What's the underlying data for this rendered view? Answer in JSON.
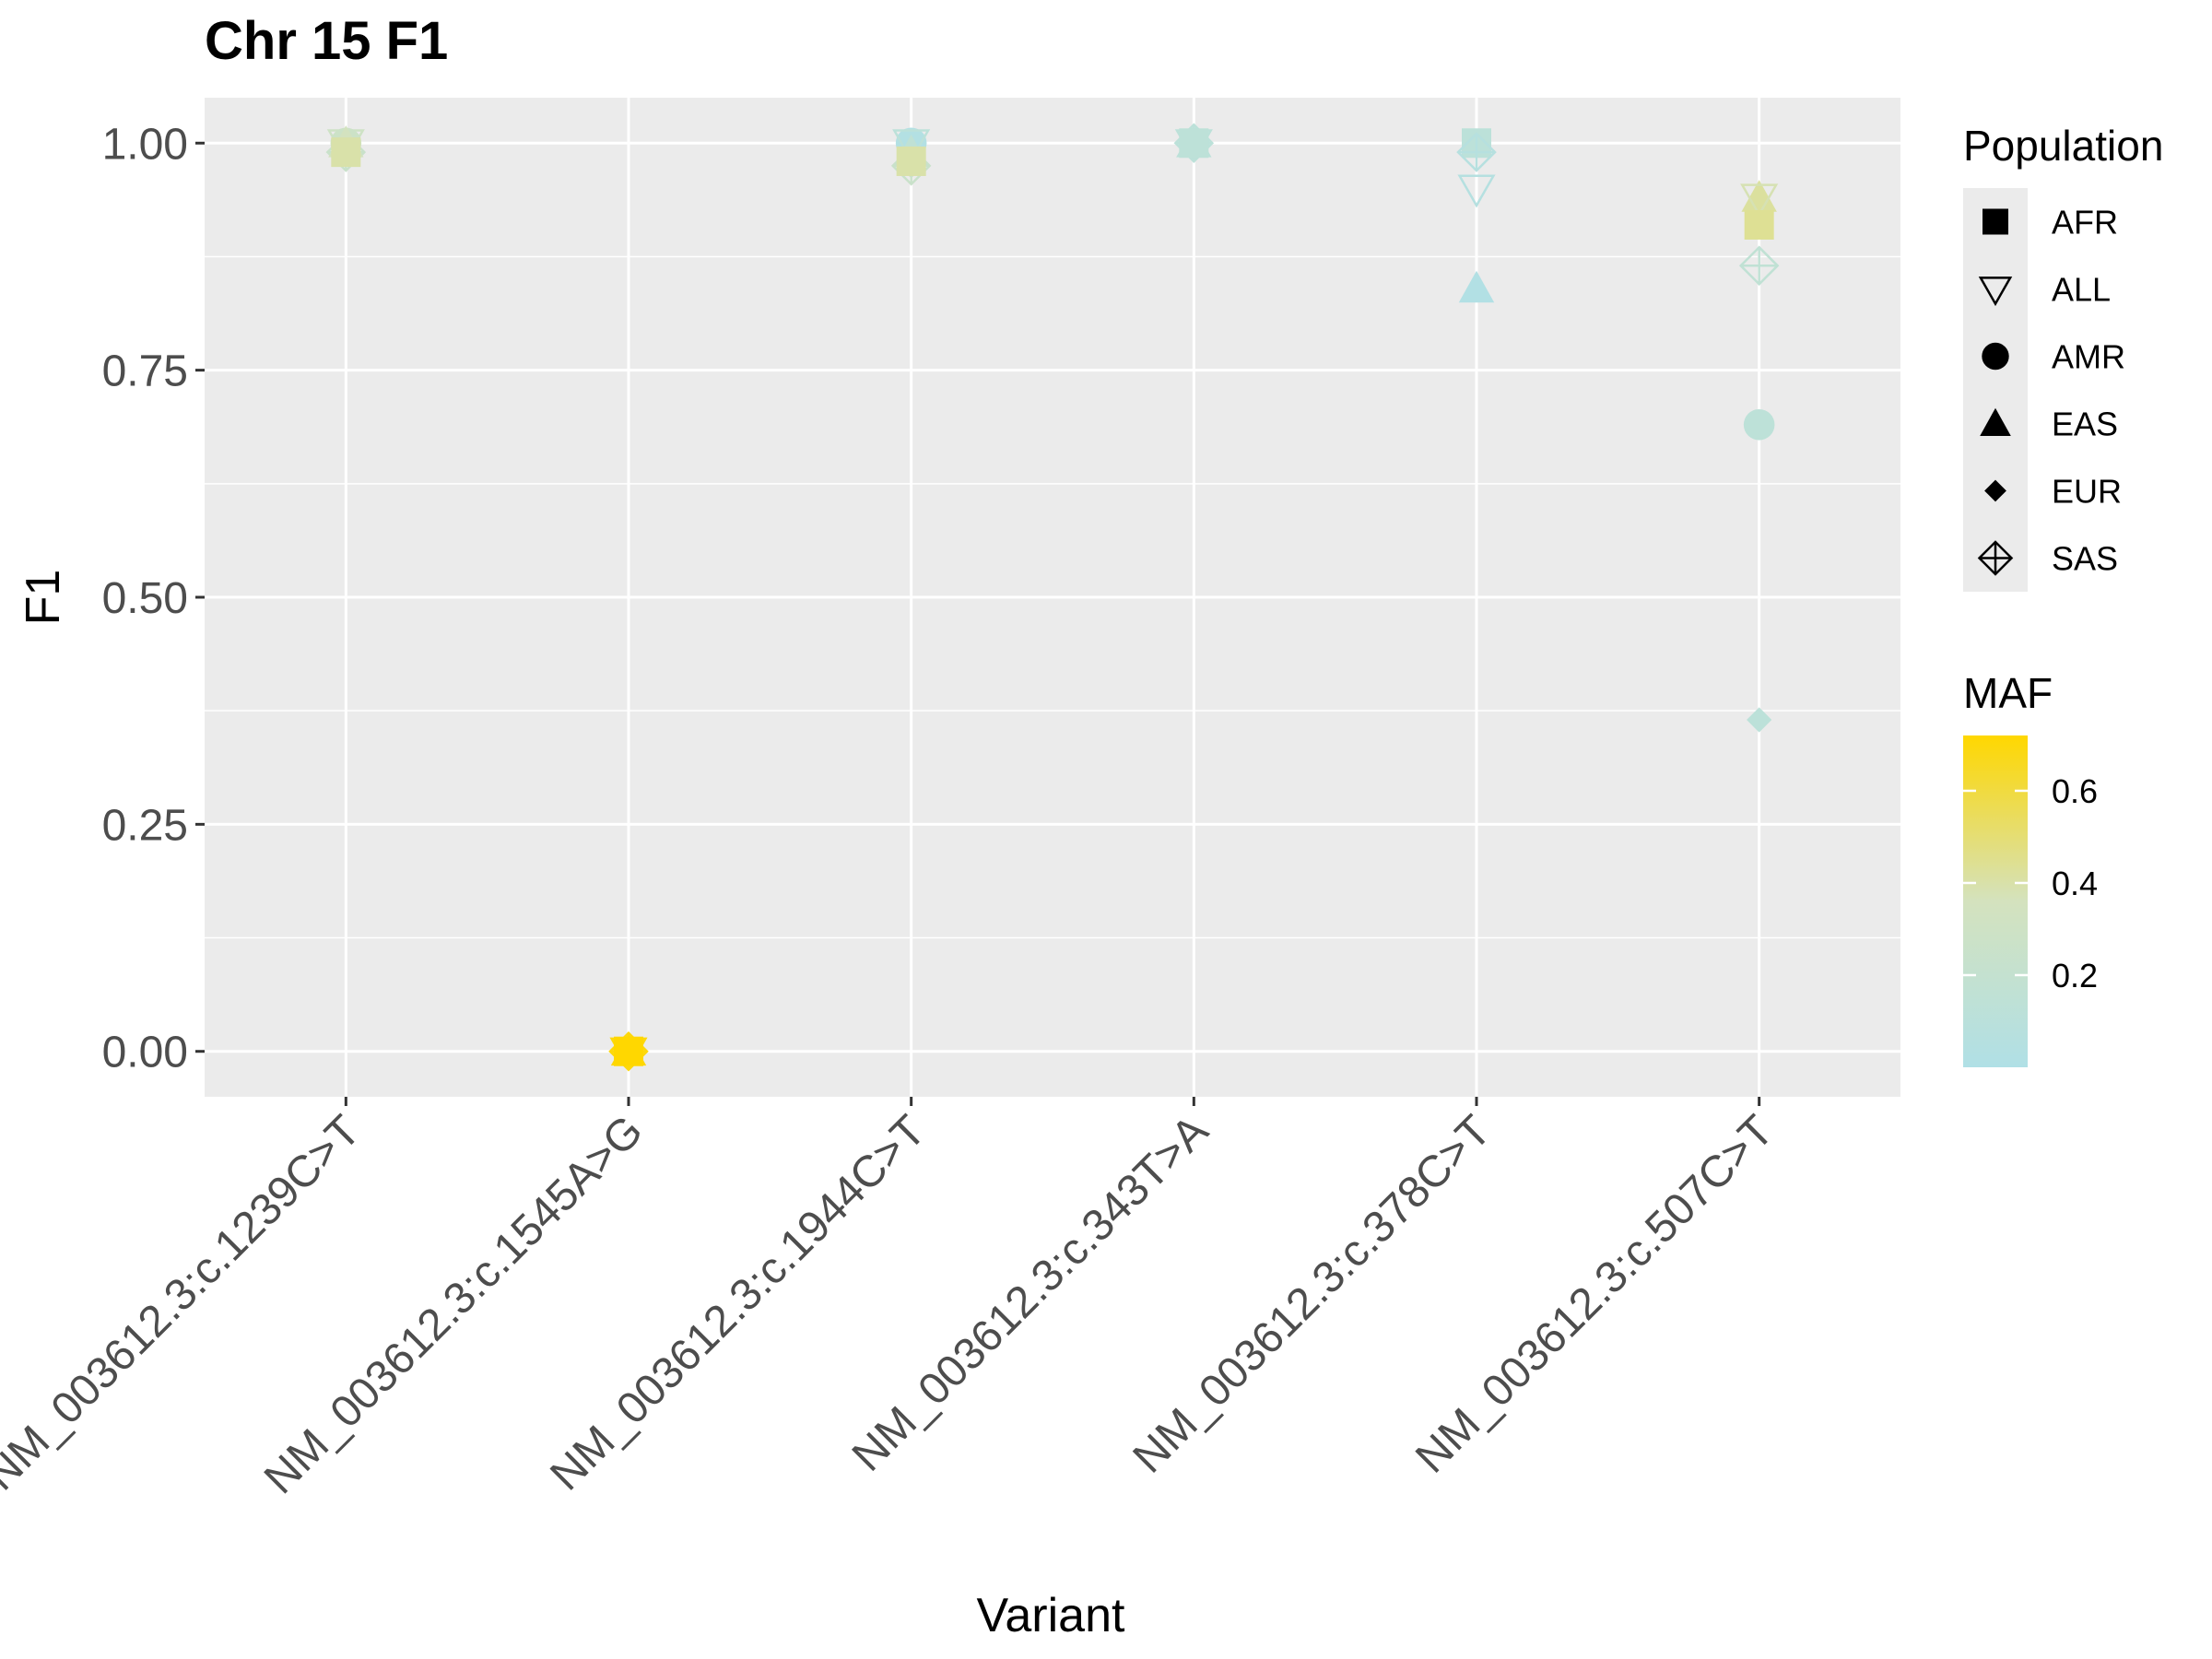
{
  "chart_data": {
    "type": "scatter",
    "title": "Chr 15 F1",
    "xlabel": "Variant",
    "ylabel": "F1",
    "categories": [
      "NM_003612.3:c.1239C>T",
      "NM_003612.3:c.1545A>G",
      "NM_003612.3:c.1944C>T",
      "NM_003612.3:c.343T>A",
      "NM_003612.3:c.378C>T",
      "NM_003612.3:c.507C>T"
    ],
    "ylim": [
      -0.05,
      1.05
    ],
    "yticks": [
      0.0,
      0.25,
      0.5,
      0.75,
      1.0
    ],
    "ytick_labels": [
      "0.00",
      "0.25",
      "0.50",
      "0.75",
      "1.00"
    ],
    "grid": true,
    "legend_shape": {
      "title": "Population",
      "position": "right",
      "entries": [
        {
          "label": "AFR",
          "shape": "filled-square"
        },
        {
          "label": "ALL",
          "shape": "open-triangle-down"
        },
        {
          "label": "AMR",
          "shape": "filled-circle"
        },
        {
          "label": "EAS",
          "shape": "filled-triangle-up"
        },
        {
          "label": "EUR",
          "shape": "filled-diamond"
        },
        {
          "label": "SAS",
          "shape": "open-diamond-plus"
        }
      ]
    },
    "legend_color": {
      "title": "MAF",
      "position": "right",
      "low_color": "#B0E0E6",
      "mid_color": "#D4E2BE",
      "high_color": "#FFD700",
      "range": [
        0.0,
        0.72
      ],
      "ticks": [
        0.2,
        0.4,
        0.6
      ],
      "tick_labels": [
        "0.2",
        "0.4",
        "0.6"
      ]
    },
    "points": [
      {
        "variant": "NM_003612.3:c.1239C>T",
        "population": "ALL",
        "f1": 1.0,
        "maf": 0.3
      },
      {
        "variant": "NM_003612.3:c.1239C>T",
        "population": "EUR",
        "f1": 0.99,
        "maf": 0.22
      },
      {
        "variant": "NM_003612.3:c.1239C>T",
        "population": "SAS",
        "f1": 0.99,
        "maf": 0.25
      },
      {
        "variant": "NM_003612.3:c.1239C>T",
        "population": "AMR",
        "f1": 1.0,
        "maf": 0.28
      },
      {
        "variant": "NM_003612.3:c.1239C>T",
        "population": "EAS",
        "f1": 1.0,
        "maf": 0.35
      },
      {
        "variant": "NM_003612.3:c.1239C>T",
        "population": "AFR",
        "f1": 0.99,
        "maf": 0.4
      },
      {
        "variant": "NM_003612.3:c.1545A>G",
        "population": "ALL",
        "f1": 0.0,
        "maf": 0.7
      },
      {
        "variant": "NM_003612.3:c.1545A>G",
        "population": "EUR",
        "f1": 0.0,
        "maf": 0.68
      },
      {
        "variant": "NM_003612.3:c.1545A>G",
        "population": "AMR",
        "f1": 0.0,
        "maf": 0.69
      },
      {
        "variant": "NM_003612.3:c.1545A>G",
        "population": "SAS",
        "f1": 0.0,
        "maf": 0.7
      },
      {
        "variant": "NM_003612.3:c.1545A>G",
        "population": "EAS",
        "f1": 0.0,
        "maf": 0.71
      },
      {
        "variant": "NM_003612.3:c.1545A>G",
        "population": "AFR",
        "f1": 0.0,
        "maf": 0.72
      },
      {
        "variant": "NM_003612.3:c.1944C>T",
        "population": "AMR",
        "f1": 1.0,
        "maf": 0.03
      },
      {
        "variant": "NM_003612.3:c.1944C>T",
        "population": "ALL",
        "f1": 1.0,
        "maf": 0.12
      },
      {
        "variant": "NM_003612.3:c.1944C>T",
        "population": "EAS",
        "f1": 0.99,
        "maf": 0.15
      },
      {
        "variant": "NM_003612.3:c.1944C>T",
        "population": "EUR",
        "f1": 0.975,
        "maf": 0.3
      },
      {
        "variant": "NM_003612.3:c.1944C>T",
        "population": "SAS",
        "f1": 0.975,
        "maf": 0.25
      },
      {
        "variant": "NM_003612.3:c.1944C>T",
        "population": "AFR",
        "f1": 0.98,
        "maf": 0.4
      },
      {
        "variant": "NM_003612.3:c.343T>A",
        "population": "ALL",
        "f1": 1.0,
        "maf": 0.12
      },
      {
        "variant": "NM_003612.3:c.343T>A",
        "population": "AMR",
        "f1": 1.0,
        "maf": 0.1
      },
      {
        "variant": "NM_003612.3:c.343T>A",
        "population": "EAS",
        "f1": 1.0,
        "maf": 0.12
      },
      {
        "variant": "NM_003612.3:c.343T>A",
        "population": "EUR",
        "f1": 1.0,
        "maf": 0.11
      },
      {
        "variant": "NM_003612.3:c.343T>A",
        "population": "SAS",
        "f1": 1.0,
        "maf": 0.12
      },
      {
        "variant": "NM_003612.3:c.343T>A",
        "population": "AFR",
        "f1": 1.0,
        "maf": 0.13
      },
      {
        "variant": "NM_003612.3:c.378C>T",
        "population": "AFR",
        "f1": 1.0,
        "maf": 0.12
      },
      {
        "variant": "NM_003612.3:c.378C>T",
        "population": "SAS",
        "f1": 0.99,
        "maf": 0.06
      },
      {
        "variant": "NM_003612.3:c.378C>T",
        "population": "ALL",
        "f1": 0.95,
        "maf": 0.05
      },
      {
        "variant": "NM_003612.3:c.378C>T",
        "population": "EAS",
        "f1": 0.84,
        "maf": 0.02
      },
      {
        "variant": "NM_003612.3:c.507C>T",
        "population": "EAS",
        "f1": 0.94,
        "maf": 0.42
      },
      {
        "variant": "NM_003612.3:c.507C>T",
        "population": "ALL",
        "f1": 0.94,
        "maf": 0.38
      },
      {
        "variant": "NM_003612.3:c.507C>T",
        "population": "AFR",
        "f1": 0.91,
        "maf": 0.44
      },
      {
        "variant": "NM_003612.3:c.507C>T",
        "population": "SAS",
        "f1": 0.865,
        "maf": 0.16
      },
      {
        "variant": "NM_003612.3:c.507C>T",
        "population": "AMR",
        "f1": 0.69,
        "maf": 0.13
      },
      {
        "variant": "NM_003612.3:c.507C>T",
        "population": "EUR",
        "f1": 0.365,
        "maf": 0.12
      }
    ]
  }
}
